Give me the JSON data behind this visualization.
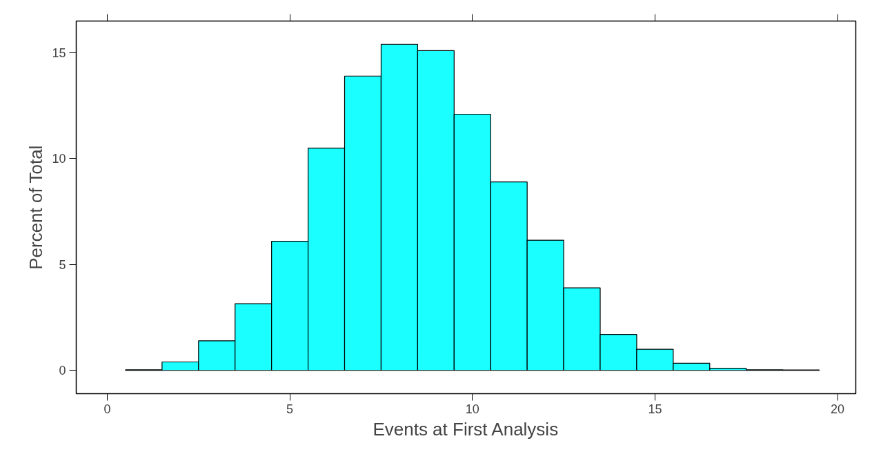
{
  "chart_data": {
    "type": "histogram",
    "xlabel": "Events at First Analysis",
    "ylabel": "Percent of Total",
    "bins": [
      0.5,
      1.5,
      2.5,
      3.5,
      4.5,
      5.5,
      6.5,
      7.5,
      8.5,
      9.5,
      10.5,
      11.5,
      12.5,
      13.5,
      14.5,
      15.5,
      16.5,
      17.5,
      18.5,
      19.5
    ],
    "values": [
      0.03,
      0.4,
      1.4,
      3.15,
      6.1,
      10.5,
      13.9,
      15.4,
      15.1,
      12.1,
      8.9,
      6.15,
      3.9,
      1.7,
      1.0,
      0.34,
      0.1,
      0.03,
      0.02
    ],
    "color": "#1affff",
    "xlim": [
      -0.85,
      20.5
    ],
    "ylim": [
      -1.1,
      16.5
    ],
    "xticks": [
      0,
      5,
      10,
      15,
      20
    ],
    "yticks": [
      0,
      5,
      10,
      15
    ]
  }
}
